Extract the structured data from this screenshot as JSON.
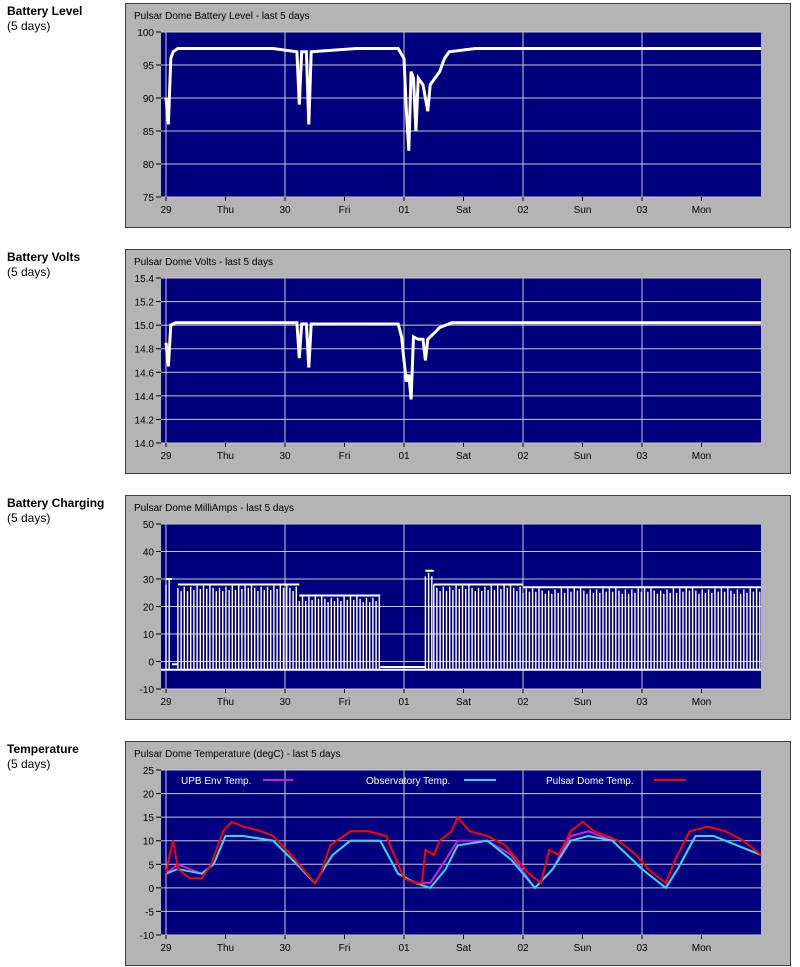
{
  "sections": [
    {
      "label": "Battery Level",
      "sub": "(5 days)"
    },
    {
      "label": "Battery Volts",
      "sub": "(5 days)"
    },
    {
      "label": "Battery Charging",
      "sub": "(5 days)"
    },
    {
      "label": "Temperature",
      "sub": "(5 days)"
    }
  ],
  "colors": {
    "plot_bg": "#00007f",
    "panel_bg": "#b4b4b4",
    "data": "#ffffff",
    "env": "#d020d0",
    "obs": "#30d8f0",
    "dome": "#ff0000"
  },
  "x_ticks": [
    "29",
    "Thu",
    "30",
    "Fri",
    "01",
    "Sat",
    "02",
    "Sun",
    "03",
    "Mon"
  ],
  "chart_data": [
    {
      "type": "line",
      "title": "Pulsar Dome Battery Level - last 5 days",
      "xlabel": "",
      "ylabel": "",
      "x_range_days": [
        0,
        5
      ],
      "ylim": [
        75,
        100
      ],
      "y_ticks": [
        "100",
        "95",
        "90",
        "85",
        "80",
        "75"
      ],
      "series": [
        {
          "values": [
            [
              0.0,
              90
            ],
            [
              0.02,
              86
            ],
            [
              0.04,
              96
            ],
            [
              0.06,
              97
            ],
            [
              0.1,
              97.5
            ],
            [
              0.2,
              97.5
            ],
            [
              0.5,
              97.5
            ],
            [
              0.9,
              97.5
            ],
            [
              1.1,
              97
            ],
            [
              1.12,
              89
            ],
            [
              1.14,
              97
            ],
            [
              1.18,
              97
            ],
            [
              1.2,
              86
            ],
            [
              1.22,
              97
            ],
            [
              1.6,
              97.5
            ],
            [
              1.95,
              97.5
            ],
            [
              2.0,
              96
            ],
            [
              2.02,
              88
            ],
            [
              2.04,
              82
            ],
            [
              2.06,
              94
            ],
            [
              2.08,
              93
            ],
            [
              2.1,
              85
            ],
            [
              2.12,
              93
            ],
            [
              2.16,
              92
            ],
            [
              2.2,
              88
            ],
            [
              2.22,
              92
            ],
            [
              2.26,
              93
            ],
            [
              2.3,
              94
            ],
            [
              2.34,
              96
            ],
            [
              2.38,
              97
            ],
            [
              2.6,
              97.5
            ],
            [
              3.0,
              97.5
            ],
            [
              3.5,
              97.5
            ],
            [
              4.0,
              97.5
            ],
            [
              4.5,
              97.5
            ],
            [
              5.0,
              97.5
            ]
          ]
        }
      ]
    },
    {
      "type": "line",
      "title": "Pulsar Dome Volts - last 5 days",
      "xlabel": "",
      "ylabel": "",
      "x_range_days": [
        0,
        5
      ],
      "ylim": [
        14.0,
        15.4
      ],
      "y_ticks": [
        "15.4",
        "15.2",
        "15.0",
        "14.8",
        "14.6",
        "14.4",
        "14.2",
        "14.0"
      ],
      "series": [
        {
          "values": [
            [
              0.0,
              14.85
            ],
            [
              0.02,
              14.65
            ],
            [
              0.04,
              15.0
            ],
            [
              0.08,
              15.02
            ],
            [
              0.5,
              15.02
            ],
            [
              1.1,
              15.02
            ],
            [
              1.12,
              14.72
            ],
            [
              1.14,
              15.01
            ],
            [
              1.18,
              15.01
            ],
            [
              1.2,
              14.64
            ],
            [
              1.22,
              15.01
            ],
            [
              1.6,
              15.01
            ],
            [
              1.95,
              15.01
            ],
            [
              1.98,
              14.9
            ],
            [
              2.0,
              14.7
            ],
            [
              2.02,
              14.52
            ],
            [
              2.04,
              14.58
            ],
            [
              2.06,
              14.37
            ],
            [
              2.08,
              14.9
            ],
            [
              2.12,
              14.88
            ],
            [
              2.16,
              14.88
            ],
            [
              2.18,
              14.7
            ],
            [
              2.2,
              14.88
            ],
            [
              2.24,
              14.92
            ],
            [
              2.3,
              14.98
            ],
            [
              2.4,
              15.02
            ],
            [
              3.0,
              15.02
            ],
            [
              4.0,
              15.02
            ],
            [
              5.0,
              15.02
            ]
          ]
        }
      ]
    },
    {
      "type": "area",
      "title": "Pulsar Dome MilliAmps - last 5 days",
      "xlabel": "",
      "ylabel": "",
      "x_range_days": [
        0,
        5
      ],
      "ylim": [
        -10,
        50
      ],
      "y_ticks": [
        "50",
        "40",
        "30",
        "20",
        "10",
        "0",
        "-10"
      ],
      "baseline": -3,
      "segments": [
        {
          "from": 0.0,
          "to": 0.05,
          "peak": 30
        },
        {
          "from": 0.05,
          "to": 0.1,
          "peak": -1
        },
        {
          "from": 0.1,
          "to": 1.12,
          "peak": 28
        },
        {
          "from": 1.12,
          "to": 1.8,
          "peak": 24
        },
        {
          "from": 1.8,
          "to": 2.18,
          "peak": -2
        },
        {
          "from": 2.18,
          "to": 2.25,
          "peak": 33
        },
        {
          "from": 2.25,
          "to": 3.0,
          "peak": 28
        },
        {
          "from": 3.0,
          "to": 5.0,
          "peak": 27
        }
      ]
    },
    {
      "type": "line",
      "title": "Pulsar Dome Temperature (degC) - last 5 days",
      "xlabel": "",
      "ylabel": "",
      "x_range_days": [
        0,
        5
      ],
      "ylim": [
        -10,
        25
      ],
      "y_ticks": [
        "25",
        "20",
        "15",
        "10",
        "5",
        "0",
        "-5",
        "-10"
      ],
      "legend": {
        "position": "top"
      },
      "series": [
        {
          "name": "UPB Env Temp.",
          "color": "#d020d0",
          "values": [
            [
              0.0,
              3
            ],
            [
              0.1,
              5
            ],
            [
              0.3,
              3
            ],
            [
              0.4,
              5
            ],
            [
              0.5,
              11
            ],
            [
              0.65,
              11
            ],
            [
              0.9,
              10
            ],
            [
              1.1,
              5
            ],
            [
              1.25,
              1
            ],
            [
              1.4,
              7
            ],
            [
              1.55,
              10
            ],
            [
              1.8,
              10
            ],
            [
              1.95,
              3
            ],
            [
              2.1,
              1
            ],
            [
              2.22,
              1
            ],
            [
              2.35,
              6
            ],
            [
              2.45,
              10
            ],
            [
              2.7,
              10
            ],
            [
              2.9,
              7
            ],
            [
              3.1,
              0
            ],
            [
              3.25,
              4
            ],
            [
              3.4,
              11
            ],
            [
              3.55,
              12
            ],
            [
              3.75,
              10
            ],
            [
              4.0,
              4
            ],
            [
              4.2,
              0
            ],
            [
              4.3,
              4
            ],
            [
              4.45,
              11
            ],
            [
              4.6,
              11
            ],
            [
              4.8,
              9
            ],
            [
              5.0,
              7
            ]
          ]
        },
        {
          "name": "Observatory Temp.",
          "color": "#30d8f0",
          "values": [
            [
              0.0,
              3
            ],
            [
              0.1,
              4
            ],
            [
              0.3,
              3
            ],
            [
              0.4,
              5
            ],
            [
              0.5,
              11
            ],
            [
              0.65,
              11
            ],
            [
              0.9,
              10
            ],
            [
              1.1,
              5
            ],
            [
              1.25,
              1
            ],
            [
              1.4,
              7
            ],
            [
              1.55,
              10
            ],
            [
              1.8,
              10
            ],
            [
              1.95,
              3
            ],
            [
              2.1,
              1
            ],
            [
              2.22,
              0
            ],
            [
              2.35,
              4
            ],
            [
              2.45,
              9
            ],
            [
              2.7,
              10
            ],
            [
              2.9,
              6
            ],
            [
              3.1,
              0
            ],
            [
              3.25,
              4
            ],
            [
              3.4,
              10
            ],
            [
              3.55,
              11
            ],
            [
              3.75,
              10
            ],
            [
              4.0,
              4
            ],
            [
              4.2,
              0
            ],
            [
              4.3,
              4
            ],
            [
              4.45,
              11
            ],
            [
              4.6,
              11
            ],
            [
              4.8,
              9
            ],
            [
              5.0,
              7
            ]
          ]
        },
        {
          "name": "Pulsar Dome Temp.",
          "color": "#ff0000",
          "values": [
            [
              0.0,
              3
            ],
            [
              0.03,
              7
            ],
            [
              0.06,
              10
            ],
            [
              0.1,
              4
            ],
            [
              0.2,
              2
            ],
            [
              0.3,
              2
            ],
            [
              0.38,
              5
            ],
            [
              0.48,
              12
            ],
            [
              0.55,
              14
            ],
            [
              0.65,
              13
            ],
            [
              0.8,
              12
            ],
            [
              0.9,
              11
            ],
            [
              1.05,
              7
            ],
            [
              1.15,
              4
            ],
            [
              1.25,
              1
            ],
            [
              1.3,
              3
            ],
            [
              1.38,
              9
            ],
            [
              1.55,
              12
            ],
            [
              1.7,
              12
            ],
            [
              1.85,
              11
            ],
            [
              1.95,
              5
            ],
            [
              2.0,
              2
            ],
            [
              2.1,
              1
            ],
            [
              2.15,
              1
            ],
            [
              2.18,
              8
            ],
            [
              2.25,
              7
            ],
            [
              2.3,
              10
            ],
            [
              2.4,
              12
            ],
            [
              2.45,
              15
            ],
            [
              2.55,
              12
            ],
            [
              2.7,
              11
            ],
            [
              2.85,
              9
            ],
            [
              2.95,
              6
            ],
            [
              3.05,
              3
            ],
            [
              3.15,
              1
            ],
            [
              3.22,
              8
            ],
            [
              3.3,
              7
            ],
            [
              3.4,
              12
            ],
            [
              3.5,
              14
            ],
            [
              3.6,
              12
            ],
            [
              3.7,
              11
            ],
            [
              3.8,
              10
            ],
            [
              3.95,
              7
            ],
            [
              4.05,
              4
            ],
            [
              4.2,
              1
            ],
            [
              4.28,
              6
            ],
            [
              4.4,
              12
            ],
            [
              4.55,
              13
            ],
            [
              4.7,
              12
            ],
            [
              4.85,
              10
            ],
            [
              5.0,
              7
            ]
          ]
        }
      ]
    }
  ]
}
